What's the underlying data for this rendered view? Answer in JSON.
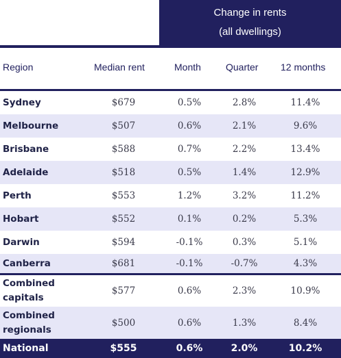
{
  "header": {
    "group_line1": "Change in rents",
    "group_line2": "(all dwellings)"
  },
  "columns": {
    "region": "Region",
    "median": "Median rent",
    "month": "Month",
    "quarter": "Quarter",
    "year": "12 months"
  },
  "rows": [
    {
      "region": "Sydney",
      "median": "$679",
      "month": "0.5%",
      "quarter": "2.8%",
      "year": "11.4%"
    },
    {
      "region": "Melbourne",
      "median": "$507",
      "month": "0.6%",
      "quarter": "2.1%",
      "year": "9.6%"
    },
    {
      "region": "Brisbane",
      "median": "$588",
      "month": "0.7%",
      "quarter": "2.2%",
      "year": "13.4%"
    },
    {
      "region": "Adelaide",
      "median": "$518",
      "month": "0.5%",
      "quarter": "1.4%",
      "year": "12.9%"
    },
    {
      "region": "Perth",
      "median": "$553",
      "month": "1.2%",
      "quarter": "3.2%",
      "year": "11.2%"
    },
    {
      "region": "Hobart",
      "median": "$552",
      "month": "0.1%",
      "quarter": "0.2%",
      "year": "5.3%"
    },
    {
      "region": "Darwin",
      "median": "$594",
      "month": "-0.1%",
      "quarter": "0.3%",
      "year": "5.1%"
    },
    {
      "region": "Canberra",
      "median": "$681",
      "month": "-0.1%",
      "quarter": "-0.7%",
      "year": "4.3%"
    }
  ],
  "combined": [
    {
      "region_line1": "Combined",
      "region_line2": "capitals",
      "median": "$577",
      "month": "0.6%",
      "quarter": "2.3%",
      "year": "10.9%"
    },
    {
      "region_line1": "Combined",
      "region_line2": "regionals",
      "median": "$500",
      "month": "0.6%",
      "quarter": "1.3%",
      "year": "8.4%"
    }
  ],
  "national": {
    "region": "National",
    "median": "$555",
    "month": "0.6%",
    "quarter": "2.0%",
    "year": "10.2%"
  }
}
